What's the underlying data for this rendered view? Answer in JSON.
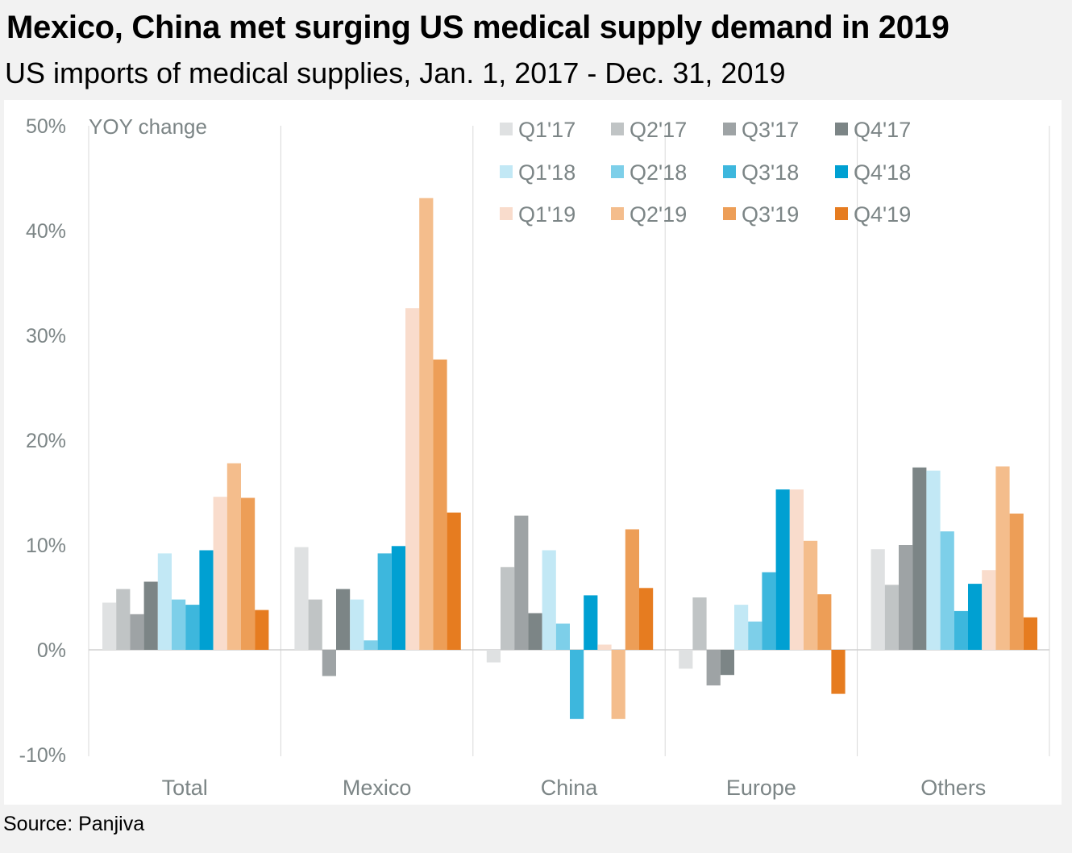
{
  "title": "Mexico, China met surging US medical supply demand in 2019",
  "subtitle": "US imports of medical supplies, Jan. 1, 2017 - Dec. 31, 2019",
  "source": "Source: Panjiva",
  "chart_data": {
    "type": "bar",
    "title": "Mexico, China met surging US medical supply demand in 2019",
    "subtitle": "US imports of medical supplies, Jan. 1, 2017 - Dec. 31, 2019",
    "ylabel": "YOY change",
    "ylim": [
      -10,
      50
    ],
    "yticks": [
      -10,
      0,
      10,
      20,
      30,
      40,
      50
    ],
    "ytick_labels": [
      "-10%",
      "0%",
      "10%",
      "20%",
      "30%",
      "40%",
      "50%"
    ],
    "grid": false,
    "legend_position": "top-right",
    "categories": [
      "Total",
      "Mexico",
      "China",
      "Europe",
      "Others"
    ],
    "series": [
      {
        "name": "Q1'17",
        "color": "#dfe1e2",
        "values": [
          4.5,
          9.8,
          -1.2,
          -1.8,
          9.6
        ]
      },
      {
        "name": "Q2'17",
        "color": "#c0c4c5",
        "values": [
          5.8,
          4.8,
          7.9,
          5.0,
          6.2
        ]
      },
      {
        "name": "Q3'17",
        "color": "#9ea3a5",
        "values": [
          3.4,
          -2.5,
          12.8,
          -3.4,
          10.0
        ]
      },
      {
        "name": "Q4'17",
        "color": "#7c8586",
        "values": [
          6.5,
          5.8,
          3.5,
          -2.4,
          17.4
        ]
      },
      {
        "name": "Q1'18",
        "color": "#c2e8f5",
        "values": [
          9.2,
          4.8,
          9.5,
          4.3,
          17.1
        ]
      },
      {
        "name": "Q2'18",
        "color": "#7dcfe9",
        "values": [
          4.8,
          0.9,
          2.5,
          2.7,
          11.3
        ]
      },
      {
        "name": "Q3'18",
        "color": "#3db7dd",
        "values": [
          4.3,
          9.2,
          -6.6,
          7.4,
          3.7
        ]
      },
      {
        "name": "Q4'18",
        "color": "#00a0d2",
        "values": [
          9.5,
          9.9,
          5.2,
          15.3,
          6.3
        ]
      },
      {
        "name": "Q1'19",
        "color": "#f9dccc",
        "values": [
          14.6,
          32.6,
          0.5,
          15.3,
          7.6
        ]
      },
      {
        "name": "Q2'19",
        "color": "#f4bd8c",
        "values": [
          17.8,
          43.1,
          -6.6,
          10.4,
          17.5
        ]
      },
      {
        "name": "Q3'19",
        "color": "#ed9e57",
        "values": [
          14.5,
          27.7,
          11.5,
          5.3,
          13.0
        ]
      },
      {
        "name": "Q4'19",
        "color": "#e67c20",
        "values": [
          3.8,
          13.1,
          5.9,
          -4.2,
          3.1
        ]
      }
    ]
  }
}
